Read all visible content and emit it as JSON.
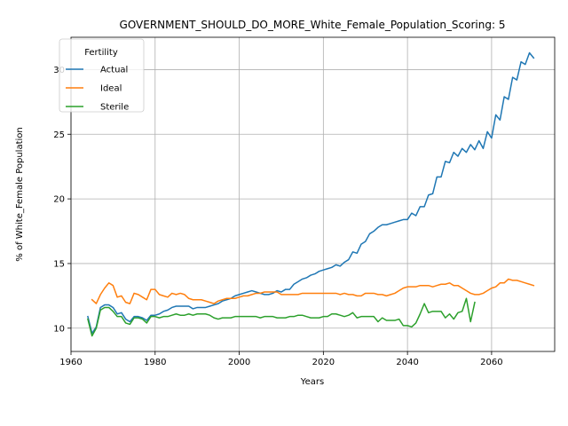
{
  "chart_data": {
    "type": "line",
    "title": "GOVERNMENT_SHOULD_DO_MORE_White_Female_Population_Scoring: 5",
    "xlabel": "Years",
    "ylabel": "% of White_Female Population",
    "xlim": [
      1960,
      2075
    ],
    "ylim": [
      8.2,
      32.5
    ],
    "xticks": [
      1960,
      1980,
      2000,
      2020,
      2040,
      2060
    ],
    "yticks": [
      10,
      15,
      20,
      25,
      30
    ],
    "grid": true,
    "legend": {
      "title": "Fertility",
      "placement": "top-left"
    },
    "series": [
      {
        "name": "Actual",
        "color": "#1f77b4",
        "points": [
          [
            1964,
            10.9
          ],
          [
            1965,
            9.6
          ],
          [
            1966,
            10.1
          ],
          [
            1967,
            11.6
          ],
          [
            1968,
            11.8
          ],
          [
            1969,
            11.8
          ],
          [
            1970,
            11.6
          ],
          [
            1971,
            11.1
          ],
          [
            1972,
            11.2
          ],
          [
            1973,
            10.7
          ],
          [
            1974,
            10.5
          ],
          [
            1975,
            10.9
          ],
          [
            1976,
            10.9
          ],
          [
            1977,
            10.8
          ],
          [
            1978,
            10.6
          ],
          [
            1979,
            11.0
          ],
          [
            1980,
            11.0
          ],
          [
            1981,
            11.1
          ],
          [
            1982,
            11.3
          ],
          [
            1983,
            11.4
          ],
          [
            1984,
            11.6
          ],
          [
            1985,
            11.7
          ],
          [
            1986,
            11.7
          ],
          [
            1987,
            11.7
          ],
          [
            1988,
            11.7
          ],
          [
            1989,
            11.5
          ],
          [
            1990,
            11.6
          ],
          [
            1991,
            11.6
          ],
          [
            1992,
            11.6
          ],
          [
            1993,
            11.7
          ],
          [
            1994,
            11.8
          ],
          [
            1995,
            11.9
          ],
          [
            1996,
            12.1
          ],
          [
            1997,
            12.2
          ],
          [
            1998,
            12.3
          ],
          [
            1999,
            12.5
          ],
          [
            2000,
            12.6
          ],
          [
            2001,
            12.7
          ],
          [
            2002,
            12.8
          ],
          [
            2003,
            12.9
          ],
          [
            2004,
            12.8
          ],
          [
            2005,
            12.7
          ],
          [
            2006,
            12.6
          ],
          [
            2007,
            12.6
          ],
          [
            2008,
            12.7
          ],
          [
            2009,
            12.9
          ],
          [
            2010,
            12.8
          ],
          [
            2011,
            13.0
          ],
          [
            2012,
            13.0
          ],
          [
            2013,
            13.4
          ],
          [
            2014,
            13.6
          ],
          [
            2015,
            13.8
          ],
          [
            2016,
            13.9
          ],
          [
            2017,
            14.1
          ],
          [
            2018,
            14.2
          ],
          [
            2019,
            14.4
          ],
          [
            2020,
            14.5
          ],
          [
            2021,
            14.6
          ],
          [
            2022,
            14.7
          ],
          [
            2023,
            14.9
          ],
          [
            2024,
            14.8
          ],
          [
            2025,
            15.1
          ],
          [
            2026,
            15.3
          ],
          [
            2027,
            15.9
          ],
          [
            2028,
            15.8
          ],
          [
            2029,
            16.5
          ],
          [
            2030,
            16.7
          ],
          [
            2031,
            17.3
          ],
          [
            2032,
            17.5
          ],
          [
            2033,
            17.8
          ],
          [
            2034,
            18.0
          ],
          [
            2035,
            18.0
          ],
          [
            2036,
            18.1
          ],
          [
            2037,
            18.2
          ],
          [
            2038,
            18.3
          ],
          [
            2039,
            18.4
          ],
          [
            2040,
            18.4
          ],
          [
            2041,
            18.9
          ],
          [
            2042,
            18.7
          ],
          [
            2043,
            19.4
          ],
          [
            2044,
            19.4
          ],
          [
            2045,
            20.3
          ],
          [
            2046,
            20.4
          ],
          [
            2047,
            21.7
          ],
          [
            2048,
            21.7
          ],
          [
            2049,
            22.9
          ],
          [
            2050,
            22.8
          ],
          [
            2051,
            23.6
          ],
          [
            2052,
            23.3
          ],
          [
            2053,
            23.9
          ],
          [
            2054,
            23.6
          ],
          [
            2055,
            24.2
          ],
          [
            2056,
            23.8
          ],
          [
            2057,
            24.5
          ],
          [
            2058,
            23.9
          ],
          [
            2059,
            25.2
          ],
          [
            2060,
            24.7
          ],
          [
            2061,
            26.5
          ],
          [
            2062,
            26.1
          ],
          [
            2063,
            27.9
          ],
          [
            2064,
            27.7
          ],
          [
            2065,
            29.4
          ],
          [
            2066,
            29.2
          ],
          [
            2067,
            30.6
          ],
          [
            2068,
            30.4
          ],
          [
            2069,
            31.3
          ],
          [
            2070,
            30.9
          ]
        ]
      },
      {
        "name": "Ideal",
        "color": "#ff7f0e",
        "points": [
          [
            1965,
            12.2
          ],
          [
            1966,
            11.9
          ],
          [
            1967,
            12.6
          ],
          [
            1968,
            13.1
          ],
          [
            1969,
            13.5
          ],
          [
            1970,
            13.3
          ],
          [
            1971,
            12.4
          ],
          [
            1972,
            12.5
          ],
          [
            1973,
            12.0
          ],
          [
            1974,
            11.9
          ],
          [
            1975,
            12.7
          ],
          [
            1976,
            12.6
          ],
          [
            1977,
            12.4
          ],
          [
            1978,
            12.2
          ],
          [
            1979,
            13.0
          ],
          [
            1980,
            13.0
          ],
          [
            1981,
            12.6
          ],
          [
            1982,
            12.5
          ],
          [
            1983,
            12.4
          ],
          [
            1984,
            12.7
          ],
          [
            1985,
            12.6
          ],
          [
            1986,
            12.7
          ],
          [
            1987,
            12.6
          ],
          [
            1988,
            12.3
          ],
          [
            1989,
            12.2
          ],
          [
            1990,
            12.2
          ],
          [
            1991,
            12.2
          ],
          [
            1992,
            12.1
          ],
          [
            1993,
            12.0
          ],
          [
            1994,
            11.9
          ],
          [
            1995,
            12.1
          ],
          [
            1996,
            12.2
          ],
          [
            1997,
            12.3
          ],
          [
            1998,
            12.3
          ],
          [
            1999,
            12.3
          ],
          [
            2000,
            12.4
          ],
          [
            2001,
            12.5
          ],
          [
            2002,
            12.5
          ],
          [
            2003,
            12.6
          ],
          [
            2004,
            12.7
          ],
          [
            2005,
            12.7
          ],
          [
            2006,
            12.8
          ],
          [
            2007,
            12.8
          ],
          [
            2008,
            12.8
          ],
          [
            2009,
            12.8
          ],
          [
            2010,
            12.6
          ],
          [
            2011,
            12.6
          ],
          [
            2012,
            12.6
          ],
          [
            2013,
            12.6
          ],
          [
            2014,
            12.6
          ],
          [
            2015,
            12.7
          ],
          [
            2016,
            12.7
          ],
          [
            2017,
            12.7
          ],
          [
            2018,
            12.7
          ],
          [
            2019,
            12.7
          ],
          [
            2020,
            12.7
          ],
          [
            2021,
            12.7
          ],
          [
            2022,
            12.7
          ],
          [
            2023,
            12.7
          ],
          [
            2024,
            12.6
          ],
          [
            2025,
            12.7
          ],
          [
            2026,
            12.6
          ],
          [
            2027,
            12.6
          ],
          [
            2028,
            12.5
          ],
          [
            2029,
            12.5
          ],
          [
            2030,
            12.7
          ],
          [
            2031,
            12.7
          ],
          [
            2032,
            12.7
          ],
          [
            2033,
            12.6
          ],
          [
            2034,
            12.6
          ],
          [
            2035,
            12.5
          ],
          [
            2036,
            12.6
          ],
          [
            2037,
            12.7
          ],
          [
            2038,
            12.9
          ],
          [
            2039,
            13.1
          ],
          [
            2040,
            13.2
          ],
          [
            2041,
            13.2
          ],
          [
            2042,
            13.2
          ],
          [
            2043,
            13.3
          ],
          [
            2044,
            13.3
          ],
          [
            2045,
            13.3
          ],
          [
            2046,
            13.2
          ],
          [
            2047,
            13.3
          ],
          [
            2048,
            13.4
          ],
          [
            2049,
            13.4
          ],
          [
            2050,
            13.5
          ],
          [
            2051,
            13.3
          ],
          [
            2052,
            13.3
          ],
          [
            2053,
            13.1
          ],
          [
            2054,
            12.9
          ],
          [
            2055,
            12.7
          ],
          [
            2056,
            12.6
          ],
          [
            2057,
            12.6
          ],
          [
            2058,
            12.7
          ],
          [
            2059,
            12.9
          ],
          [
            2060,
            13.1
          ],
          [
            2061,
            13.2
          ],
          [
            2062,
            13.5
          ],
          [
            2063,
            13.5
          ],
          [
            2064,
            13.8
          ],
          [
            2065,
            13.7
          ],
          [
            2066,
            13.7
          ],
          [
            2067,
            13.6
          ],
          [
            2068,
            13.5
          ],
          [
            2069,
            13.4
          ],
          [
            2070,
            13.3
          ]
        ]
      },
      {
        "name": "Sterile",
        "color": "#2ca02c",
        "points": [
          [
            1964,
            10.7
          ],
          [
            1965,
            9.4
          ],
          [
            1966,
            10.0
          ],
          [
            1967,
            11.4
          ],
          [
            1968,
            11.6
          ],
          [
            1969,
            11.6
          ],
          [
            1970,
            11.3
          ],
          [
            1971,
            10.9
          ],
          [
            1972,
            10.9
          ],
          [
            1973,
            10.4
          ],
          [
            1974,
            10.3
          ],
          [
            1975,
            10.8
          ],
          [
            1976,
            10.8
          ],
          [
            1977,
            10.7
          ],
          [
            1978,
            10.4
          ],
          [
            1979,
            10.9
          ],
          [
            1980,
            10.9
          ],
          [
            1981,
            10.8
          ],
          [
            1982,
            10.9
          ],
          [
            1983,
            10.9
          ],
          [
            1984,
            11.0
          ],
          [
            1985,
            11.1
          ],
          [
            1986,
            11.0
          ],
          [
            1987,
            11.0
          ],
          [
            1988,
            11.1
          ],
          [
            1989,
            11.0
          ],
          [
            1990,
            11.1
          ],
          [
            1991,
            11.1
          ],
          [
            1992,
            11.1
          ],
          [
            1993,
            11.0
          ],
          [
            1994,
            10.8
          ],
          [
            1995,
            10.7
          ],
          [
            1996,
            10.8
          ],
          [
            1997,
            10.8
          ],
          [
            1998,
            10.8
          ],
          [
            1999,
            10.9
          ],
          [
            2000,
            10.9
          ],
          [
            2001,
            10.9
          ],
          [
            2002,
            10.9
          ],
          [
            2003,
            10.9
          ],
          [
            2004,
            10.9
          ],
          [
            2005,
            10.8
          ],
          [
            2006,
            10.9
          ],
          [
            2007,
            10.9
          ],
          [
            2008,
            10.9
          ],
          [
            2009,
            10.8
          ],
          [
            2010,
            10.8
          ],
          [
            2011,
            10.8
          ],
          [
            2012,
            10.9
          ],
          [
            2013,
            10.9
          ],
          [
            2014,
            11.0
          ],
          [
            2015,
            11.0
          ],
          [
            2016,
            10.9
          ],
          [
            2017,
            10.8
          ],
          [
            2018,
            10.8
          ],
          [
            2019,
            10.8
          ],
          [
            2020,
            10.9
          ],
          [
            2021,
            10.9
          ],
          [
            2022,
            11.1
          ],
          [
            2023,
            11.1
          ],
          [
            2024,
            11.0
          ],
          [
            2025,
            10.9
          ],
          [
            2026,
            11.0
          ],
          [
            2027,
            11.2
          ],
          [
            2028,
            10.8
          ],
          [
            2029,
            10.9
          ],
          [
            2030,
            10.9
          ],
          [
            2031,
            10.9
          ],
          [
            2032,
            10.9
          ],
          [
            2033,
            10.5
          ],
          [
            2034,
            10.8
          ],
          [
            2035,
            10.6
          ],
          [
            2036,
            10.6
          ],
          [
            2037,
            10.6
          ],
          [
            2038,
            10.7
          ],
          [
            2039,
            10.2
          ],
          [
            2040,
            10.2
          ],
          [
            2041,
            10.1
          ],
          [
            2042,
            10.4
          ],
          [
            2043,
            11.1
          ],
          [
            2044,
            11.9
          ],
          [
            2045,
            11.2
          ],
          [
            2046,
            11.3
          ],
          [
            2047,
            11.3
          ],
          [
            2048,
            11.3
          ],
          [
            2049,
            10.8
          ],
          [
            2050,
            11.1
          ],
          [
            2051,
            10.7
          ],
          [
            2052,
            11.2
          ],
          [
            2053,
            11.3
          ],
          [
            2054,
            12.3
          ],
          [
            2055,
            10.5
          ],
          [
            2056,
            12.0
          ]
        ]
      }
    ]
  }
}
